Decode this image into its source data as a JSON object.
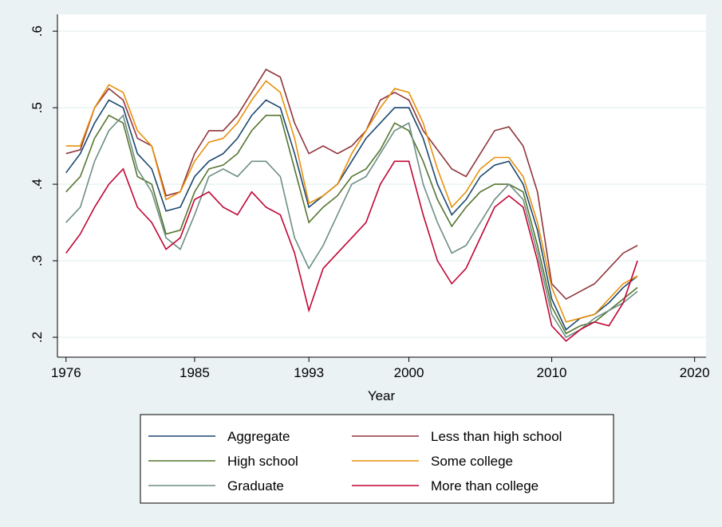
{
  "chart_data": {
    "type": "line",
    "x_label": "Year",
    "x": [
      1976,
      1977,
      1978,
      1979,
      1980,
      1981,
      1982,
      1983,
      1984,
      1985,
      1986,
      1987,
      1988,
      1989,
      1990,
      1991,
      1992,
      1993,
      1994,
      1995,
      1996,
      1997,
      1998,
      1999,
      2000,
      2001,
      2002,
      2003,
      2004,
      2005,
      2006,
      2007,
      2008,
      2009,
      2010,
      2011,
      2012,
      2013,
      2014,
      2015,
      2016
    ],
    "series": [
      {
        "name": "Aggregate",
        "color": "#1a476f",
        "values": [
          0.415,
          0.44,
          0.48,
          0.51,
          0.5,
          0.44,
          0.42,
          0.365,
          0.37,
          0.41,
          0.43,
          0.44,
          0.46,
          0.49,
          0.51,
          0.5,
          0.44,
          0.37,
          0.385,
          0.4,
          0.43,
          0.46,
          0.48,
          0.5,
          0.5,
          0.46,
          0.4,
          0.36,
          0.38,
          0.41,
          0.425,
          0.43,
          0.4,
          0.34,
          0.25,
          0.21,
          0.225,
          0.23,
          0.245,
          0.265,
          0.28
        ]
      },
      {
        "name": "Less than high school",
        "color": "#90353b",
        "values": [
          0.44,
          0.445,
          0.5,
          0.525,
          0.51,
          0.46,
          0.45,
          0.385,
          0.39,
          0.44,
          0.47,
          0.47,
          0.49,
          0.52,
          0.55,
          0.54,
          0.48,
          0.44,
          0.45,
          0.44,
          0.45,
          0.47,
          0.51,
          0.52,
          0.51,
          0.47,
          0.445,
          0.42,
          0.41,
          0.44,
          0.47,
          0.475,
          0.45,
          0.39,
          0.27,
          0.25,
          0.26,
          0.27,
          0.29,
          0.31,
          0.32
        ]
      },
      {
        "name": "High school",
        "color": "#55752f",
        "values": [
          0.39,
          0.41,
          0.46,
          0.49,
          0.48,
          0.41,
          0.4,
          0.335,
          0.34,
          0.39,
          0.42,
          0.425,
          0.44,
          0.47,
          0.49,
          0.49,
          0.42,
          0.35,
          0.37,
          0.385,
          0.41,
          0.42,
          0.445,
          0.48,
          0.47,
          0.43,
          0.38,
          0.345,
          0.37,
          0.39,
          0.4,
          0.4,
          0.39,
          0.32,
          0.24,
          0.205,
          0.215,
          0.22,
          0.235,
          0.25,
          0.265
        ]
      },
      {
        "name": "Some college",
        "color": "#e8900a",
        "values": [
          0.45,
          0.45,
          0.5,
          0.53,
          0.52,
          0.47,
          0.45,
          0.38,
          0.39,
          0.43,
          0.455,
          0.46,
          0.48,
          0.51,
          0.535,
          0.52,
          0.46,
          0.375,
          0.385,
          0.4,
          0.44,
          0.47,
          0.5,
          0.525,
          0.52,
          0.48,
          0.42,
          0.37,
          0.39,
          0.42,
          0.435,
          0.435,
          0.41,
          0.35,
          0.265,
          0.22,
          0.225,
          0.23,
          0.25,
          0.27,
          0.28
        ]
      },
      {
        "name": "Graduate",
        "color": "#6e8e84",
        "values": [
          0.35,
          0.37,
          0.43,
          0.47,
          0.49,
          0.42,
          0.39,
          0.33,
          0.315,
          0.36,
          0.41,
          0.42,
          0.41,
          0.43,
          0.43,
          0.41,
          0.33,
          0.29,
          0.32,
          0.36,
          0.4,
          0.41,
          0.44,
          0.47,
          0.48,
          0.4,
          0.35,
          0.31,
          0.32,
          0.35,
          0.38,
          0.4,
          0.38,
          0.31,
          0.23,
          0.2,
          0.21,
          0.225,
          0.235,
          0.245,
          0.26
        ]
      },
      {
        "name": "More than college",
        "color": "#c10534",
        "values": [
          0.31,
          0.335,
          0.37,
          0.4,
          0.42,
          0.37,
          0.35,
          0.315,
          0.33,
          0.38,
          0.39,
          0.37,
          0.36,
          0.39,
          0.37,
          0.36,
          0.31,
          0.235,
          0.29,
          0.31,
          0.33,
          0.35,
          0.4,
          0.43,
          0.43,
          0.36,
          0.3,
          0.27,
          0.29,
          0.33,
          0.37,
          0.385,
          0.37,
          0.3,
          0.215,
          0.195,
          0.21,
          0.22,
          0.215,
          0.245,
          0.3
        ]
      }
    ],
    "xlim": [
      1975.4,
      2020.8
    ],
    "xticks": [
      1976,
      1985,
      1993,
      2000,
      2010,
      2020
    ],
    "ylim": [
      0.174,
      0.622
    ],
    "yticks": [
      {
        "value": 0.2,
        "label": ".2"
      },
      {
        "value": 0.3,
        "label": ".3"
      },
      {
        "value": 0.4,
        "label": ".4"
      },
      {
        "value": 0.5,
        "label": ".5"
      },
      {
        "value": 0.6,
        "label": ".6"
      }
    ],
    "grid": true,
    "legend_position": "bottom"
  }
}
